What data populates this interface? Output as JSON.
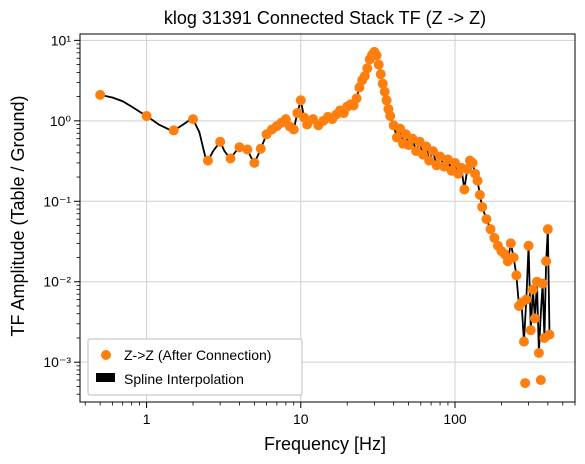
{
  "chart_data": {
    "type": "scatter",
    "title": "klog 31391 Connected Stack TF (Z -> Z)",
    "xlabel": "Frequency [Hz]",
    "ylabel": "TF Amplitude (Table / Ground)",
    "xscale": "log",
    "yscale": "log",
    "xlim": [
      0.37,
      600
    ],
    "ylim": [
      0.00032,
      12
    ],
    "grid": true,
    "legend_position": "lower-left",
    "x_ticks": [
      {
        "value": 1,
        "label": "1"
      },
      {
        "value": 10,
        "label": "10"
      },
      {
        "value": 100,
        "label": "100"
      }
    ],
    "y_ticks": [
      {
        "value": 10,
        "label": "10¹"
      },
      {
        "value": 1,
        "label": "10⁰"
      },
      {
        "value": 0.1,
        "label": "10⁻¹"
      },
      {
        "value": 0.01,
        "label": "10⁻²"
      },
      {
        "value": 0.001,
        "label": "10⁻³"
      }
    ],
    "series": [
      {
        "name": "Z->Z (After Connection)",
        "kind": "scatter",
        "color": "#ff7f0e",
        "points": [
          [
            0.5,
            2.1
          ],
          [
            1.0,
            1.15
          ],
          [
            1.5,
            0.76
          ],
          [
            2.0,
            1.05
          ],
          [
            2.5,
            0.32
          ],
          [
            3.0,
            0.55
          ],
          [
            3.5,
            0.34
          ],
          [
            4.0,
            0.47
          ],
          [
            4.5,
            0.44
          ],
          [
            5.0,
            0.3
          ],
          [
            5.5,
            0.45
          ],
          [
            6.0,
            0.68
          ],
          [
            6.5,
            0.78
          ],
          [
            7.0,
            0.86
          ],
          [
            7.5,
            0.95
          ],
          [
            8.0,
            1.05
          ],
          [
            8.5,
            0.85
          ],
          [
            9.0,
            0.78
          ],
          [
            9.5,
            1.25
          ],
          [
            10.0,
            1.8
          ],
          [
            10.5,
            1.1
          ],
          [
            11.0,
            0.9
          ],
          [
            12.0,
            1.05
          ],
          [
            13.0,
            0.88
          ],
          [
            14.0,
            1.0
          ],
          [
            15.0,
            1.12
          ],
          [
            16.0,
            1.05
          ],
          [
            17.0,
            1.2
          ],
          [
            18.0,
            1.35
          ],
          [
            19.0,
            1.25
          ],
          [
            20.0,
            1.5
          ],
          [
            21.0,
            1.6
          ],
          [
            22.0,
            1.55
          ],
          [
            23.0,
            1.9
          ],
          [
            24.0,
            2.6
          ],
          [
            25.0,
            3.2
          ],
          [
            26.0,
            3.6
          ],
          [
            27.0,
            4.5
          ],
          [
            28.0,
            5.8
          ],
          [
            29.0,
            6.6
          ],
          [
            30.0,
            7.2
          ],
          [
            31.0,
            6.5
          ],
          [
            32.0,
            5.0
          ],
          [
            33.0,
            3.8
          ],
          [
            34.0,
            2.9
          ],
          [
            35.0,
            2.3
          ],
          [
            36.0,
            1.8
          ],
          [
            37.0,
            1.4
          ],
          [
            38.0,
            1.15
          ],
          [
            40.0,
            0.88
          ],
          [
            42.0,
            0.62
          ],
          [
            44.0,
            0.8
          ],
          [
            46.0,
            0.52
          ],
          [
            48.0,
            0.68
          ],
          [
            50.0,
            0.5
          ],
          [
            53.0,
            0.6
          ],
          [
            56.0,
            0.42
          ],
          [
            59.0,
            0.55
          ],
          [
            62.0,
            0.38
          ],
          [
            65.0,
            0.48
          ],
          [
            68.0,
            0.32
          ],
          [
            72.0,
            0.42
          ],
          [
            76.0,
            0.28
          ],
          [
            80.0,
            0.36
          ],
          [
            85.0,
            0.27
          ],
          [
            90.0,
            0.33
          ],
          [
            95.0,
            0.24
          ],
          [
            100.0,
            0.3
          ],
          [
            105.0,
            0.22
          ],
          [
            110.0,
            0.26
          ],
          [
            115.0,
            0.14
          ],
          [
            120.0,
            0.25
          ],
          [
            125.0,
            0.32
          ],
          [
            130.0,
            0.3
          ],
          [
            135.0,
            0.22
          ],
          [
            140.0,
            0.18
          ],
          [
            145.0,
            0.12
          ],
          [
            150.0,
            0.085
          ],
          [
            160.0,
            0.06
          ],
          [
            170.0,
            0.045
          ],
          [
            180.0,
            0.035
          ],
          [
            190.0,
            0.028
          ],
          [
            200.0,
            0.024
          ],
          [
            210.0,
            0.022
          ],
          [
            220.0,
            0.018
          ],
          [
            230.0,
            0.03
          ],
          [
            240.0,
            0.02
          ],
          [
            250.0,
            0.012
          ],
          [
            260.0,
            0.005
          ],
          [
            270.0,
            0.0055
          ],
          [
            280.0,
            0.0018
          ],
          [
            285.0,
            0.00055
          ],
          [
            290.0,
            0.006
          ],
          [
            300.0,
            0.028
          ],
          [
            310.0,
            0.0025
          ],
          [
            320.0,
            0.008
          ],
          [
            330.0,
            0.0035
          ],
          [
            340.0,
            0.01
          ],
          [
            350.0,
            0.0013
          ],
          [
            360.0,
            0.0006
          ],
          [
            370.0,
            0.0095
          ],
          [
            380.0,
            0.002
          ],
          [
            390.0,
            0.018
          ],
          [
            400.0,
            0.045
          ],
          [
            410.0,
            0.0022
          ]
        ]
      },
      {
        "name": "Spline Interpolation",
        "kind": "line",
        "color": "#000000",
        "points": [
          [
            0.5,
            2.1
          ],
          [
            0.6,
            1.95
          ],
          [
            0.7,
            1.75
          ],
          [
            0.8,
            1.5
          ],
          [
            0.9,
            1.3
          ],
          [
            1.0,
            1.15
          ],
          [
            1.2,
            0.9
          ],
          [
            1.4,
            0.78
          ],
          [
            1.5,
            0.76
          ],
          [
            1.7,
            0.88
          ],
          [
            1.9,
            1.02
          ],
          [
            2.0,
            1.05
          ],
          [
            2.2,
            0.72
          ],
          [
            2.4,
            0.36
          ],
          [
            2.5,
            0.32
          ],
          [
            2.7,
            0.42
          ],
          [
            3.0,
            0.55
          ],
          [
            3.2,
            0.42
          ],
          [
            3.5,
            0.34
          ],
          [
            3.8,
            0.42
          ],
          [
            4.0,
            0.47
          ],
          [
            4.3,
            0.43
          ],
          [
            4.5,
            0.44
          ],
          [
            4.8,
            0.34
          ],
          [
            5.0,
            0.3
          ],
          [
            5.3,
            0.38
          ],
          [
            5.5,
            0.45
          ],
          [
            6.0,
            0.68
          ],
          [
            6.5,
            0.78
          ],
          [
            7.0,
            0.86
          ],
          [
            7.5,
            0.95
          ],
          [
            8.0,
            1.05
          ],
          [
            8.5,
            0.85
          ],
          [
            9.0,
            0.78
          ],
          [
            9.5,
            1.25
          ],
          [
            10.0,
            1.8
          ],
          [
            10.5,
            1.1
          ],
          [
            11.0,
            0.9
          ],
          [
            12.0,
            1.05
          ],
          [
            13.0,
            0.88
          ],
          [
            14.0,
            1.0
          ],
          [
            15.0,
            1.12
          ],
          [
            16.0,
            1.05
          ],
          [
            17.0,
            1.2
          ],
          [
            18.0,
            1.35
          ],
          [
            19.0,
            1.25
          ],
          [
            20.0,
            1.5
          ],
          [
            21.0,
            1.6
          ],
          [
            22.0,
            1.55
          ],
          [
            23.0,
            1.9
          ],
          [
            24.0,
            2.6
          ],
          [
            25.0,
            3.2
          ],
          [
            26.0,
            3.6
          ],
          [
            27.0,
            4.5
          ],
          [
            28.0,
            5.8
          ],
          [
            29.0,
            6.6
          ],
          [
            30.0,
            7.2
          ],
          [
            31.0,
            6.5
          ],
          [
            32.0,
            5.0
          ],
          [
            33.0,
            3.8
          ],
          [
            34.0,
            2.9
          ],
          [
            35.0,
            2.3
          ],
          [
            36.0,
            1.8
          ],
          [
            37.0,
            1.4
          ],
          [
            38.0,
            1.15
          ],
          [
            40.0,
            0.88
          ],
          [
            42.0,
            0.62
          ],
          [
            44.0,
            0.8
          ],
          [
            46.0,
            0.52
          ],
          [
            48.0,
            0.68
          ],
          [
            50.0,
            0.5
          ],
          [
            53.0,
            0.6
          ],
          [
            56.0,
            0.42
          ],
          [
            59.0,
            0.55
          ],
          [
            62.0,
            0.38
          ],
          [
            65.0,
            0.48
          ],
          [
            68.0,
            0.32
          ],
          [
            72.0,
            0.42
          ],
          [
            76.0,
            0.28
          ],
          [
            80.0,
            0.36
          ],
          [
            85.0,
            0.27
          ],
          [
            90.0,
            0.33
          ],
          [
            95.0,
            0.24
          ],
          [
            100.0,
            0.3
          ],
          [
            105.0,
            0.22
          ],
          [
            110.0,
            0.26
          ],
          [
            115.0,
            0.14
          ],
          [
            120.0,
            0.25
          ],
          [
            125.0,
            0.32
          ],
          [
            130.0,
            0.3
          ],
          [
            135.0,
            0.22
          ],
          [
            140.0,
            0.18
          ],
          [
            145.0,
            0.12
          ],
          [
            150.0,
            0.085
          ],
          [
            160.0,
            0.06
          ],
          [
            170.0,
            0.045
          ],
          [
            180.0,
            0.035
          ],
          [
            190.0,
            0.028
          ],
          [
            200.0,
            0.024
          ],
          [
            210.0,
            0.022
          ],
          [
            220.0,
            0.018
          ],
          [
            230.0,
            0.03
          ],
          [
            240.0,
            0.02
          ],
          [
            250.0,
            0.012
          ],
          [
            260.0,
            0.005
          ],
          [
            270.0,
            0.0055
          ],
          [
            280.0,
            0.0018
          ],
          [
            290.0,
            0.006
          ],
          [
            300.0,
            0.028
          ],
          [
            310.0,
            0.0025
          ],
          [
            320.0,
            0.008
          ],
          [
            330.0,
            0.0035
          ],
          [
            340.0,
            0.01
          ],
          [
            350.0,
            0.0013
          ],
          [
            360.0,
            0.004
          ],
          [
            370.0,
            0.0095
          ],
          [
            380.0,
            0.002
          ],
          [
            390.0,
            0.018
          ],
          [
            400.0,
            0.045
          ],
          [
            410.0,
            0.0022
          ]
        ]
      }
    ]
  }
}
